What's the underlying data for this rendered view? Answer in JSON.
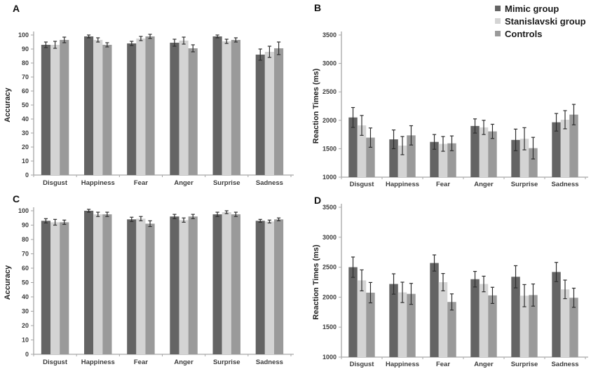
{
  "legend": {
    "position": "top-right",
    "items": [
      {
        "label": "Mimic group",
        "color": "#646464"
      },
      {
        "label": "Stanislavski group",
        "color": "#d4d4d4"
      },
      {
        "label": "Controls",
        "color": "#9a9a9a"
      }
    ]
  },
  "chart_data": [
    {
      "panel_label": "A",
      "type": "bar",
      "title": "",
      "xlabel": "",
      "ylabel": "Accuracy",
      "ylim": [
        0,
        100
      ],
      "ytick_step": 10,
      "grid": false,
      "legend_position": "none",
      "categories": [
        "Disgust",
        "Happiness",
        "Fear",
        "Anger",
        "Surprise",
        "Sadness"
      ],
      "series": [
        {
          "name": "Mimic group",
          "color": "#646464",
          "values": [
            93,
            99,
            94,
            94.5,
            99,
            86
          ],
          "errors": [
            2,
            1,
            1.5,
            2.5,
            1,
            4
          ]
        },
        {
          "name": "Stanislavski group",
          "color": "#d4d4d4",
          "values": [
            93,
            96.5,
            97.5,
            96,
            95.5,
            88
          ],
          "errors": [
            2.5,
            1.5,
            1.5,
            2.5,
            1.5,
            4
          ]
        },
        {
          "name": "Controls",
          "color": "#9a9a9a",
          "values": [
            96.5,
            93,
            99,
            90.5,
            96.5,
            90.5
          ],
          "errors": [
            2,
            1.5,
            1.5,
            2.5,
            1.5,
            4.5
          ]
        }
      ]
    },
    {
      "panel_label": "B",
      "type": "bar",
      "title": "",
      "xlabel": "",
      "ylabel": "Reaction Times (ms)",
      "ylim": [
        1000,
        3500
      ],
      "ytick_step": 500,
      "grid": false,
      "legend_position": "top-right",
      "categories": [
        "Disgust",
        "Happiness",
        "Fear",
        "Anger",
        "Surprise",
        "Sadness"
      ],
      "series": [
        {
          "name": "Mimic group",
          "color": "#646464",
          "values": [
            2050,
            1665,
            1620,
            1900,
            1655,
            1965
          ],
          "errors": [
            175,
            165,
            130,
            125,
            190,
            155
          ]
        },
        {
          "name": "Stanislavski group",
          "color": "#d4d4d4",
          "values": [
            1910,
            1555,
            1585,
            1875,
            1675,
            2010
          ],
          "errors": [
            175,
            160,
            130,
            125,
            195,
            160
          ]
        },
        {
          "name": "Controls",
          "color": "#9a9a9a",
          "values": [
            1695,
            1735,
            1595,
            1805,
            1510,
            2100
          ],
          "errors": [
            170,
            170,
            130,
            125,
            190,
            180
          ]
        }
      ]
    },
    {
      "panel_label": "C",
      "type": "bar",
      "title": "",
      "xlabel": "",
      "ylabel": "Accuracy",
      "ylim": [
        0,
        100
      ],
      "ytick_step": 10,
      "grid": false,
      "legend_position": "none",
      "categories": [
        "Disgust",
        "Happiness",
        "Fear",
        "Anger",
        "Surprise",
        "Sadness"
      ],
      "series": [
        {
          "name": "Mimic group",
          "color": "#646464",
          "values": [
            93,
            100,
            94,
            96,
            97.5,
            93
          ],
          "errors": [
            1.5,
            1,
            1.5,
            1.5,
            1.5,
            1
          ]
        },
        {
          "name": "Stanislavski group",
          "color": "#d4d4d4",
          "values": [
            92,
            97.5,
            94.5,
            93.5,
            99,
            92.5
          ],
          "errors": [
            2,
            1.5,
            1.5,
            1.5,
            1,
            1
          ]
        },
        {
          "name": "Controls",
          "color": "#9a9a9a",
          "values": [
            92,
            97.5,
            91,
            96,
            97.5,
            94
          ],
          "errors": [
            1.5,
            1.5,
            2,
            1.5,
            1.5,
            1
          ]
        }
      ]
    },
    {
      "panel_label": "D",
      "type": "bar",
      "title": "",
      "xlabel": "",
      "ylabel": "Reaction Times (ms)",
      "ylim": [
        1000,
        3500
      ],
      "ytick_step": 500,
      "grid": false,
      "legend_position": "none",
      "categories": [
        "Disgust",
        "Happiness",
        "Fear",
        "Anger",
        "Surprise",
        "Sadness"
      ],
      "series": [
        {
          "name": "Mimic group",
          "color": "#646464",
          "values": [
            2500,
            2220,
            2570,
            2300,
            2340,
            2420
          ],
          "errors": [
            170,
            170,
            135,
            130,
            185,
            160
          ]
        },
        {
          "name": "Stanislavski group",
          "color": "#d4d4d4",
          "values": [
            2280,
            2080,
            2250,
            2220,
            2025,
            2130
          ],
          "errors": [
            175,
            170,
            145,
            130,
            185,
            155
          ]
        },
        {
          "name": "Controls",
          "color": "#9a9a9a",
          "values": [
            2075,
            2055,
            1920,
            2030,
            2035,
            1990
          ],
          "errors": [
            170,
            175,
            135,
            135,
            185,
            160
          ]
        }
      ]
    }
  ]
}
